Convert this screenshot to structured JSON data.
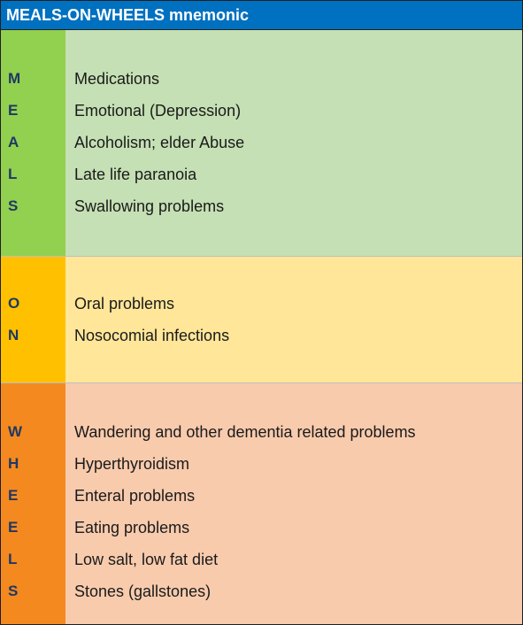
{
  "title": "MEALS-ON-WHEELS mnemonic",
  "sections": {
    "meals": [
      {
        "letter": "M",
        "text": "Medications"
      },
      {
        "letter": "E",
        "text": "Emotional (Depression)"
      },
      {
        "letter": "A",
        "text": "Alcoholism; elder Abuse"
      },
      {
        "letter": "L",
        "text": "Late life paranoia"
      },
      {
        "letter": "S",
        "text": "Swallowing problems"
      }
    ],
    "on": [
      {
        "letter": "O",
        "text": "Oral problems"
      },
      {
        "letter": "N",
        "text": "Nosocomial infections"
      }
    ],
    "wheels": [
      {
        "letter": "W",
        "text": "Wandering and other dementia related problems"
      },
      {
        "letter": "H",
        "text": "Hyperthyroidism"
      },
      {
        "letter": "E",
        "text": "Enteral problems"
      },
      {
        "letter": "E",
        "text": "Eating problems"
      },
      {
        "letter": "L",
        "text": "Low salt, low fat diet"
      },
      {
        "letter": "S",
        "text": "Stones (gallstones)"
      }
    ]
  },
  "colors": {
    "header": "#0070c0",
    "meals_letter": "#92d050",
    "meals_text": "#c5e0b4",
    "on_letter": "#ffc000",
    "on_text": "#ffe699",
    "wheels_letter": "#f4891f",
    "wheels_text": "#f8cbad",
    "letter_text": "#1f3864"
  }
}
